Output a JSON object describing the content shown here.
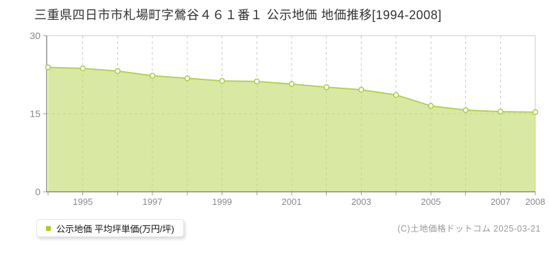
{
  "title": "三重県四日市市札場町字鶯谷４６１番１  公示地価  地価推移[1994-2008]",
  "legend": {
    "label": "公示地価 平均坪単価(万円/坪)"
  },
  "footer": {
    "copyright": "(C)土地価格ドットコム 2025-03-21"
  },
  "colors": {
    "area_fill": "#c2db6a",
    "area_fill_opacity": 0.62,
    "line": "#b4d24b",
    "marker_fill": "#ffffff",
    "marker_stroke": "#a9cc3e",
    "grid": "#cccccc",
    "axis": "#555555",
    "tick": "#999999",
    "tick_label": "#888888",
    "legend_swatch": "#a8cb2d"
  },
  "chart_data": {
    "type": "area",
    "title": "三重県四日市市札場町字鶯谷４６１番１ 公示地価 地価推移[1994-2008]",
    "x": [
      1994,
      1995,
      1996,
      1997,
      1998,
      1999,
      2000,
      2001,
      2002,
      2003,
      2004,
      2005,
      2006,
      2007,
      2008
    ],
    "series": [
      {
        "name": "公示地価 平均坪単価(万円/坪)",
        "values": [
          23.9,
          23.7,
          23.2,
          22.3,
          21.8,
          21.3,
          21.2,
          20.7,
          20.1,
          19.6,
          18.6,
          16.5,
          15.7,
          15.4,
          15.3
        ]
      }
    ],
    "ylabel": "",
    "xlabel": "",
    "ylim": [
      0,
      30
    ],
    "yticks": [
      0,
      15,
      30
    ],
    "xtick_labeled_years": [
      1995,
      1997,
      1999,
      2001,
      2003,
      2005,
      2007,
      2008
    ],
    "grid": {
      "vertical": "dashed at every year",
      "horizontal": "dashed at 15, solid light top border at 30"
    },
    "legend_position": "bottom-left"
  }
}
